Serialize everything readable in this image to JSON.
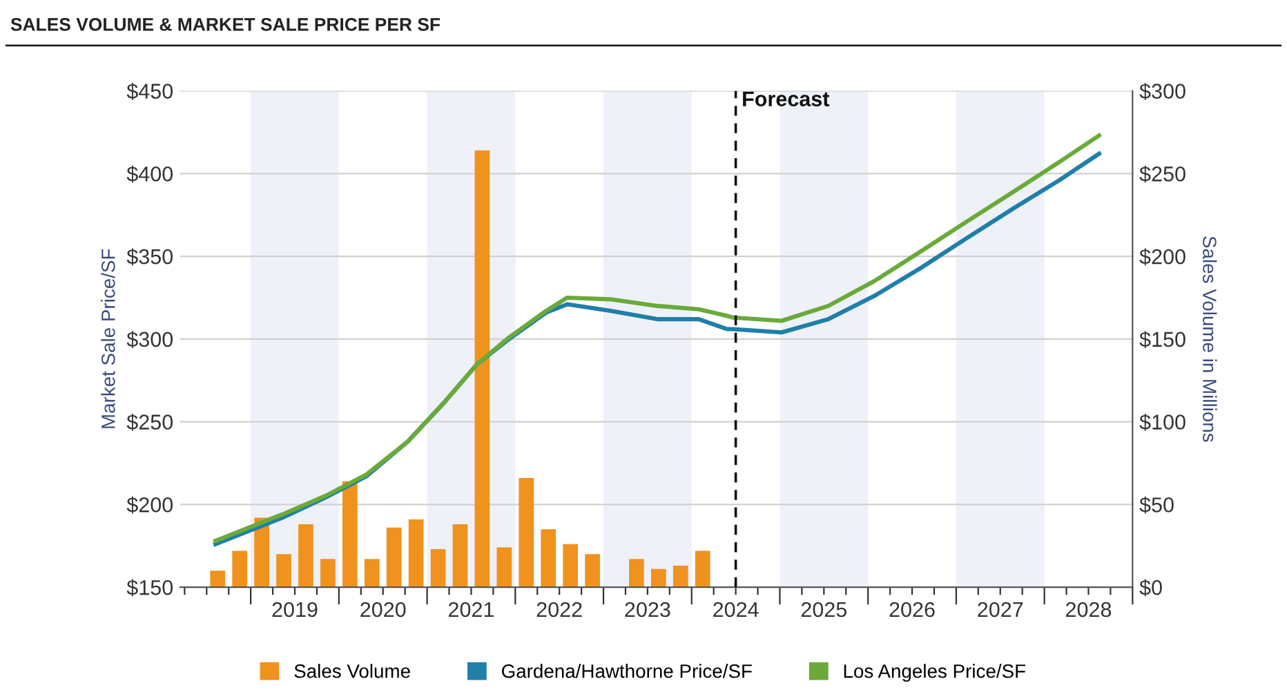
{
  "chart_data": {
    "type": "bar",
    "title": "SALES VOLUME & MARKET SALE PRICE PER SF",
    "ylabel": "Market Sale Price/SF",
    "y2label": "Sales Volume in Millions",
    "xlim": [
      2018.2,
      2029
    ],
    "xticks": [
      {
        "value": 2018.25,
        "label": null
      },
      {
        "value": 2018.5,
        "label": null
      },
      {
        "value": 2018.75,
        "label": null
      },
      {
        "value": 2019,
        "label": null
      },
      {
        "value": 2019.25,
        "label": null
      },
      {
        "value": 2019.5,
        "label": "2019"
      },
      {
        "value": 2019.75,
        "label": null
      },
      {
        "value": 2020,
        "label": null
      },
      {
        "value": 2020.25,
        "label": null
      },
      {
        "value": 2020.5,
        "label": "2020"
      },
      {
        "value": 2020.75,
        "label": null
      },
      {
        "value": 2021,
        "label": null
      },
      {
        "value": 2021.25,
        "label": null
      },
      {
        "value": 2021.5,
        "label": "2021"
      },
      {
        "value": 2021.75,
        "label": null
      },
      {
        "value": 2022,
        "label": null
      },
      {
        "value": 2022.25,
        "label": null
      },
      {
        "value": 2022.5,
        "label": "2022"
      },
      {
        "value": 2022.75,
        "label": null
      },
      {
        "value": 2023,
        "label": null
      },
      {
        "value": 2023.25,
        "label": null
      },
      {
        "value": 2023.5,
        "label": "2023"
      },
      {
        "value": 2023.75,
        "label": null
      },
      {
        "value": 2024,
        "label": null
      },
      {
        "value": 2024.25,
        "label": null
      },
      {
        "value": 2024.5,
        "label": "2024"
      },
      {
        "value": 2024.75,
        "label": null
      },
      {
        "value": 2025,
        "label": null
      },
      {
        "value": 2025.25,
        "label": null
      },
      {
        "value": 2025.5,
        "label": "2025"
      },
      {
        "value": 2025.75,
        "label": null
      },
      {
        "value": 2026,
        "label": null
      },
      {
        "value": 2026.25,
        "label": null
      },
      {
        "value": 2026.5,
        "label": "2026"
      },
      {
        "value": 2026.75,
        "label": null
      },
      {
        "value": 2027,
        "label": null
      },
      {
        "value": 2027.25,
        "label": null
      },
      {
        "value": 2027.5,
        "label": "2027"
      },
      {
        "value": 2027.75,
        "label": null
      },
      {
        "value": 2028,
        "label": null
      },
      {
        "value": 2028.25,
        "label": null
      },
      {
        "value": 2028.5,
        "label": "2028"
      },
      {
        "value": 2028.75,
        "label": null
      },
      {
        "value": 2029,
        "label": null
      }
    ],
    "ylim": [
      150,
      450
    ],
    "yticks": [
      {
        "value": 150,
        "label": "$150"
      },
      {
        "value": 200,
        "label": "$200"
      },
      {
        "value": 250,
        "label": "$250"
      },
      {
        "value": 300,
        "label": "$300"
      },
      {
        "value": 350,
        "label": "$350"
      },
      {
        "value": 400,
        "label": "$400"
      },
      {
        "value": 450,
        "label": "$450"
      }
    ],
    "y2lim": [
      0,
      300
    ],
    "y2ticks": [
      {
        "value": 0,
        "label": "$0"
      },
      {
        "value": 50,
        "label": "$50"
      },
      {
        "value": 100,
        "label": "$100"
      },
      {
        "value": 150,
        "label": "$150"
      },
      {
        "value": 200,
        "label": "$200"
      },
      {
        "value": 250,
        "label": "$250"
      },
      {
        "value": 300,
        "label": "$300"
      }
    ],
    "grid": "y",
    "legend": "bottom",
    "series": [
      {
        "name": "Sales Volume",
        "axis": "y2",
        "color": "#f0921e",
        "x": [
          2018.625,
          2018.875,
          2019.125,
          2019.375,
          2019.625,
          2019.875,
          2020.125,
          2020.375,
          2020.625,
          2020.875,
          2021.125,
          2021.375,
          2021.625,
          2021.875,
          2022.125,
          2022.375,
          2022.625,
          2022.875,
          2023.125,
          2023.375,
          2023.625,
          2023.875,
          2024.125
        ],
        "values": [
          10,
          22,
          42,
          20,
          38,
          17,
          64,
          17,
          36,
          41,
          23,
          38,
          264,
          24,
          66,
          35,
          26,
          20,
          null,
          17,
          11,
          13,
          22
        ]
      },
      {
        "name": "Gardena/Hawthorne Price/SF",
        "type": "line",
        "color": "#1f7fa8",
        "x": [
          2018.6,
          2019.36,
          2019.84,
          2020.31,
          2020.78,
          2021.2,
          2021.57,
          2021.93,
          2022.35,
          2022.59,
          2023.08,
          2023.61,
          2024.08,
          2024.4,
          2024.47,
          2025.02,
          2025.55,
          2026.07,
          2026.6,
          2027.12,
          2027.65,
          2028.17,
          2028.62
        ],
        "values": [
          176,
          192,
          204,
          217,
          238,
          262,
          285,
          300,
          316,
          321,
          317,
          312,
          312,
          306,
          306,
          304,
          312,
          326,
          343,
          361,
          379,
          396,
          412
        ]
      },
      {
        "name": "Los Angeles Price/SF",
        "type": "line",
        "color": "#6aaa3a",
        "x": [
          2018.6,
          2019.36,
          2019.84,
          2020.31,
          2020.78,
          2021.2,
          2021.57,
          2021.93,
          2022.35,
          2022.59,
          2023.08,
          2023.61,
          2024.08,
          2024.4,
          2024.47,
          2025.02,
          2025.55,
          2026.07,
          2026.6,
          2027.12,
          2027.65,
          2028.17,
          2028.62
        ],
        "values": [
          178,
          194,
          205,
          218,
          238,
          262,
          285,
          301,
          317,
          325,
          324,
          320,
          318,
          314,
          313,
          311,
          320,
          335,
          353,
          371,
          389,
          407,
          423
        ]
      }
    ],
    "ref_lines": [
      {
        "axis": "x",
        "value": 2024.5,
        "label": "Forecast",
        "color": "#111111",
        "line_style": "dashed"
      }
    ],
    "bands": [
      {
        "axis": "x",
        "from": 2019,
        "to": 2020,
        "label": null,
        "color": "#eef1f8"
      },
      {
        "axis": "x",
        "from": 2021,
        "to": 2022,
        "label": null,
        "color": "#eef1f8"
      },
      {
        "axis": "x",
        "from": 2023,
        "to": 2024,
        "label": null,
        "color": "#eef1f8"
      },
      {
        "axis": "x",
        "from": 2025,
        "to": 2026,
        "label": null,
        "color": "#eef1f8"
      },
      {
        "axis": "x",
        "from": 2027,
        "to": 2028,
        "label": null,
        "color": "#eef1f8"
      }
    ]
  }
}
